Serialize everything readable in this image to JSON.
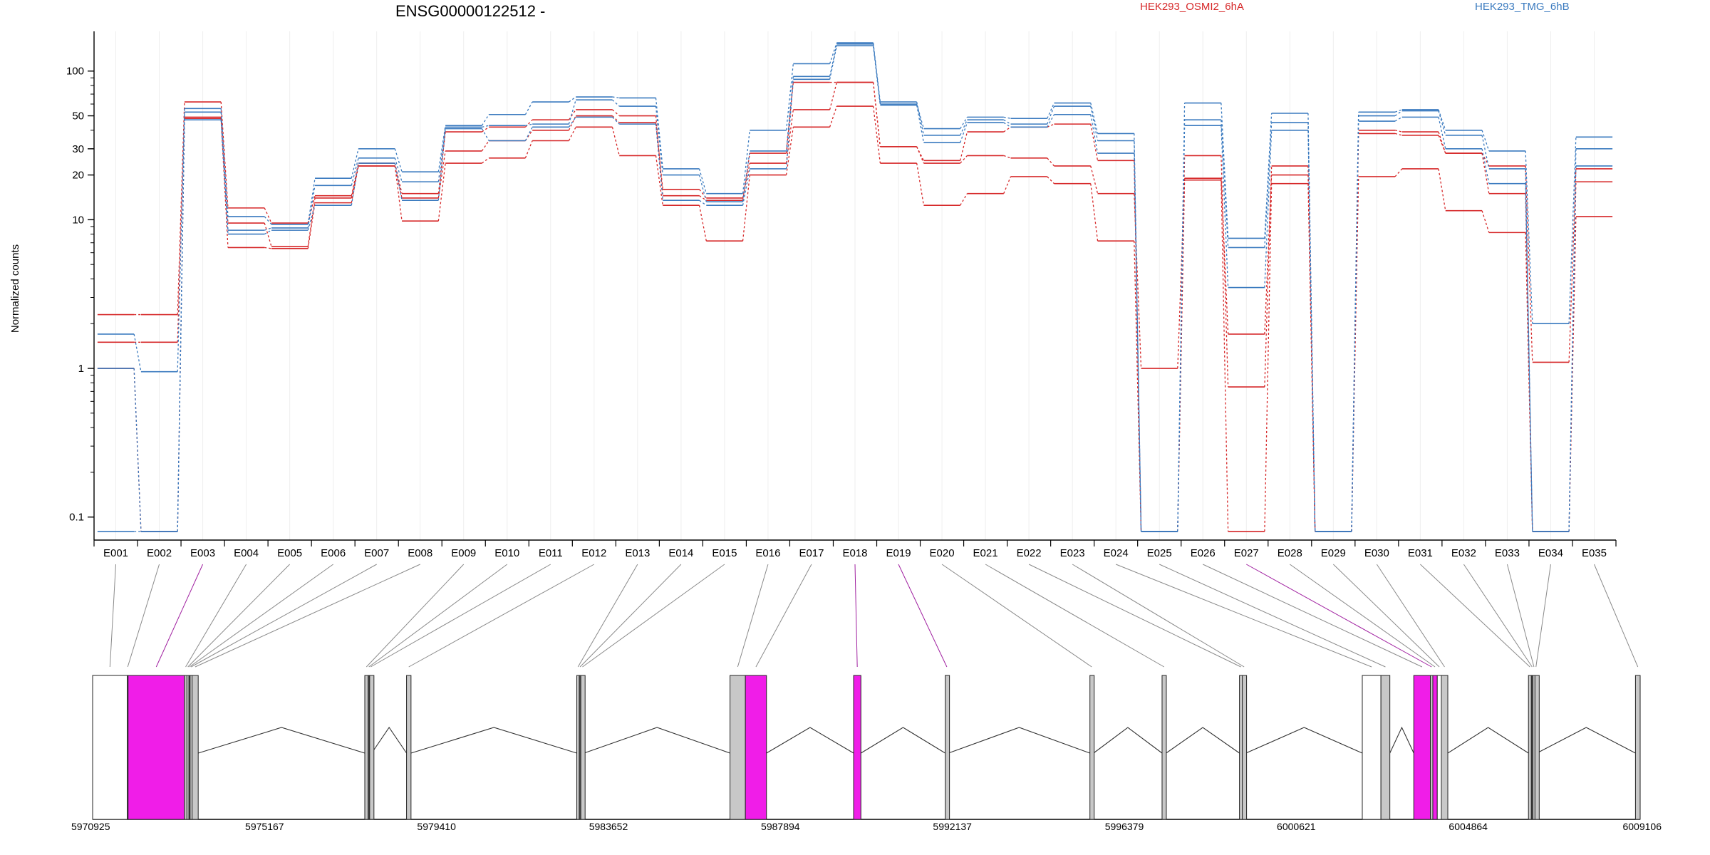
{
  "chart_data": {
    "type": "line",
    "title": "ENSG00000122512 -",
    "ylabel": "Normalized counts",
    "y_scale": "log",
    "ylim": [
      0.07,
      185
    ],
    "y_ticks": [
      "0.1",
      "1",
      "10",
      "20",
      "30",
      "50",
      "100"
    ],
    "y_tick_values": [
      0.1,
      1,
      10,
      20,
      30,
      50,
      100
    ],
    "grid": "vertical exon separators",
    "legend": {
      "placement": "top",
      "position_note": "text labels only"
    },
    "categories": [
      "E001",
      "E002",
      "E003",
      "E004",
      "E005",
      "E006",
      "E007",
      "E008",
      "E009",
      "E010",
      "E011",
      "E012",
      "E013",
      "E014",
      "E015",
      "E016",
      "E017",
      "E018",
      "E019",
      "E020",
      "E021",
      "E022",
      "E023",
      "E024",
      "E025",
      "E026",
      "E027",
      "E028",
      "E029",
      "E030",
      "E031",
      "E032",
      "E033",
      "E034",
      "E035"
    ],
    "series": [
      {
        "name": "HEK293_OSMI2_6hA",
        "color": "#d62728",
        "group": "HEK293_OSMI2_6hA",
        "line": "solid",
        "values": [
          2.3,
          2.3,
          62,
          12,
          9.5,
          14.5,
          24,
          15,
          39,
          42,
          47,
          55,
          50,
          14.5,
          13.5,
          28,
          84,
          84,
          31,
          25,
          39,
          42,
          44,
          25,
          0.08,
          27,
          0.75,
          23,
          0.08,
          40,
          39,
          28,
          23,
          1.1,
          22
        ]
      },
      {
        "name": "",
        "color": "#d62728",
        "group": "HEK293_OSMI2_6hA",
        "line": "solid",
        "values": [
          1.5,
          1.5,
          49,
          9.5,
          6.6,
          14,
          23,
          14,
          29,
          34,
          40,
          50,
          45,
          16,
          14,
          24,
          55,
          84,
          31,
          24,
          27,
          26,
          23,
          15,
          1.0,
          19,
          1.7,
          20,
          0.08,
          38,
          37,
          28,
          15,
          0.08,
          18
        ]
      },
      {
        "name": "",
        "color": "#d62728",
        "group": "HEK293_OSMI2_6hA",
        "line": "solid",
        "values": [
          1.0,
          0.08,
          48,
          6.5,
          6.4,
          13,
          23,
          9.8,
          24,
          26,
          34,
          42,
          27,
          12.5,
          7.2,
          20,
          42,
          58,
          24,
          12.5,
          15,
          19.5,
          17.5,
          7.2,
          0.08,
          18.5,
          0.08,
          17.5,
          0.08,
          19.5,
          22,
          11.5,
          8.2,
          0.08,
          10.5
        ]
      },
      {
        "name": "HEK293_TMG_6hB",
        "color": "#3a7abf",
        "group": "HEK293_TMG_6hB",
        "line": "solid",
        "values": [
          1.7,
          0.95,
          56,
          10.5,
          9.3,
          19,
          30,
          21,
          43,
          51,
          62,
          67,
          66,
          22,
          15,
          40,
          112,
          155,
          60,
          41,
          49,
          48,
          61,
          38,
          0.08,
          61,
          7.5,
          52,
          0.08,
          53,
          55,
          40,
          29,
          2.0,
          36
        ]
      },
      {
        "name": "",
        "color": "#3a7abf",
        "group": "HEK293_TMG_6hB",
        "line": "solid",
        "values": [
          1.0,
          0.08,
          53,
          8.5,
          8.8,
          17,
          26,
          18,
          42,
          43,
          44,
          64,
          58,
          20,
          13.2,
          29,
          92,
          152,
          62,
          37,
          47,
          44,
          58,
          34,
          0.08,
          47,
          6.5,
          45,
          0.08,
          50,
          54,
          37,
          22,
          0.08,
          30
        ]
      },
      {
        "name": "",
        "color": "#3a7abf",
        "group": "HEK293_TMG_6hB",
        "line": "solid",
        "values": [
          0.08,
          0.08,
          47,
          8.0,
          8.5,
          12.5,
          24,
          13.5,
          41,
          34,
          42,
          49,
          44,
          13.5,
          12.5,
          22,
          88,
          148,
          59,
          33,
          45,
          42,
          51,
          28,
          0.08,
          43,
          3.5,
          40,
          0.08,
          46,
          49,
          30,
          17.5,
          0.08,
          23
        ]
      }
    ],
    "gene_model": {
      "coord_ticks": [
        "5970925",
        "5975167",
        "5979410",
        "5983652",
        "5987894",
        "5992137",
        "5996379",
        "6000621",
        "6004864",
        "6009106"
      ],
      "coord_tick_values": [
        5970925,
        5975167,
        5979410,
        5983652,
        5987894,
        5992137,
        5996379,
        6000621,
        6004864,
        6009106
      ],
      "genomic_range": [
        5970925,
        6009106
      ],
      "exon_bins": [
        {
          "id": "E001",
          "start": 5970925,
          "end": 5971780,
          "type": "white"
        },
        {
          "id": "E002",
          "start": 5971780,
          "end": 5971800,
          "type": "grey"
        },
        {
          "id": "E003",
          "start": 5971800,
          "end": 5973190,
          "type": "magenta"
        },
        {
          "id": "E004",
          "start": 5973190,
          "end": 5973250,
          "type": "grey"
        },
        {
          "id": "E005",
          "start": 5973250,
          "end": 5973300,
          "type": "grey"
        },
        {
          "id": "E006",
          "start": 5973300,
          "end": 5973330,
          "type": "dark"
        },
        {
          "id": "E007",
          "start": 5973330,
          "end": 5973380,
          "type": "grey"
        },
        {
          "id": "E008",
          "start": 5973380,
          "end": 5973530,
          "type": "grey"
        },
        {
          "id": "E009",
          "start": 5977640,
          "end": 5977720,
          "type": "grey"
        },
        {
          "id": "E010",
          "start": 5977720,
          "end": 5977760,
          "type": "dark"
        },
        {
          "id": "E011",
          "start": 5977760,
          "end": 5977810,
          "type": "grey"
        },
        {
          "id": "E012",
          "start": 5978670,
          "end": 5978780,
          "type": "grey"
        },
        {
          "id": "E013",
          "start": 5982870,
          "end": 5982930,
          "type": "grey"
        },
        {
          "id": "E014",
          "start": 5982930,
          "end": 5982970,
          "type": "dark"
        },
        {
          "id": "E015",
          "start": 5982970,
          "end": 5983050,
          "type": "grey"
        },
        {
          "id": "E016",
          "start": 5986650,
          "end": 5987030,
          "type": "grey"
        },
        {
          "id": "E017",
          "start": 5987030,
          "end": 5987550,
          "type": "magenta"
        },
        {
          "id": "E018",
          "start": 5989700,
          "end": 5989880,
          "type": "magenta"
        },
        {
          "id": "E019",
          "start": 5991960,
          "end": 5992040,
          "type": "grey"
        },
        {
          "id": "E020",
          "start": 5995530,
          "end": 5995620,
          "type": "grey"
        },
        {
          "id": "E021",
          "start": 5997310,
          "end": 5997410,
          "type": "grey"
        },
        {
          "id": "E022",
          "start": 5999220,
          "end": 5999290,
          "type": "grey"
        },
        {
          "id": "E023",
          "start": 5999290,
          "end": 5999380,
          "type": "grey"
        },
        {
          "id": "E024",
          "start": 6002250,
          "end": 6002710,
          "type": "white"
        },
        {
          "id": "E025",
          "start": 6002710,
          "end": 6002930,
          "type": "grey"
        },
        {
          "id": "E026",
          "start": 6003520,
          "end": 6003930,
          "type": "magenta"
        },
        {
          "id": "E027",
          "start": 6003930,
          "end": 6003990,
          "type": "grey"
        },
        {
          "id": "E028",
          "start": 6003990,
          "end": 6004100,
          "type": "magenta"
        },
        {
          "id": "E029",
          "start": 6004100,
          "end": 6004200,
          "type": "white"
        },
        {
          "id": "E030",
          "start": 6004200,
          "end": 6004360,
          "type": "grey"
        },
        {
          "id": "E031",
          "start": 6006350,
          "end": 6006420,
          "type": "grey"
        },
        {
          "id": "E032",
          "start": 6006420,
          "end": 6006460,
          "type": "dark"
        },
        {
          "id": "E033",
          "start": 6006460,
          "end": 6006510,
          "type": "grey"
        },
        {
          "id": "E034",
          "start": 6006510,
          "end": 6006560,
          "type": "grey"
        },
        {
          "id": "E035",
          "start": 6008990,
          "end": 6009106,
          "type": "grey"
        }
      ],
      "link_colors": {
        "normal": "#8a8a8a",
        "highlight": "#a020a0"
      },
      "highlighted_bins": [
        "E003",
        "E018",
        "E019",
        "E027"
      ],
      "exon_colors": {
        "white": "#ffffff",
        "grey": "#c8c8c8",
        "magenta": "#f01de8",
        "dark": "#555555"
      }
    }
  }
}
